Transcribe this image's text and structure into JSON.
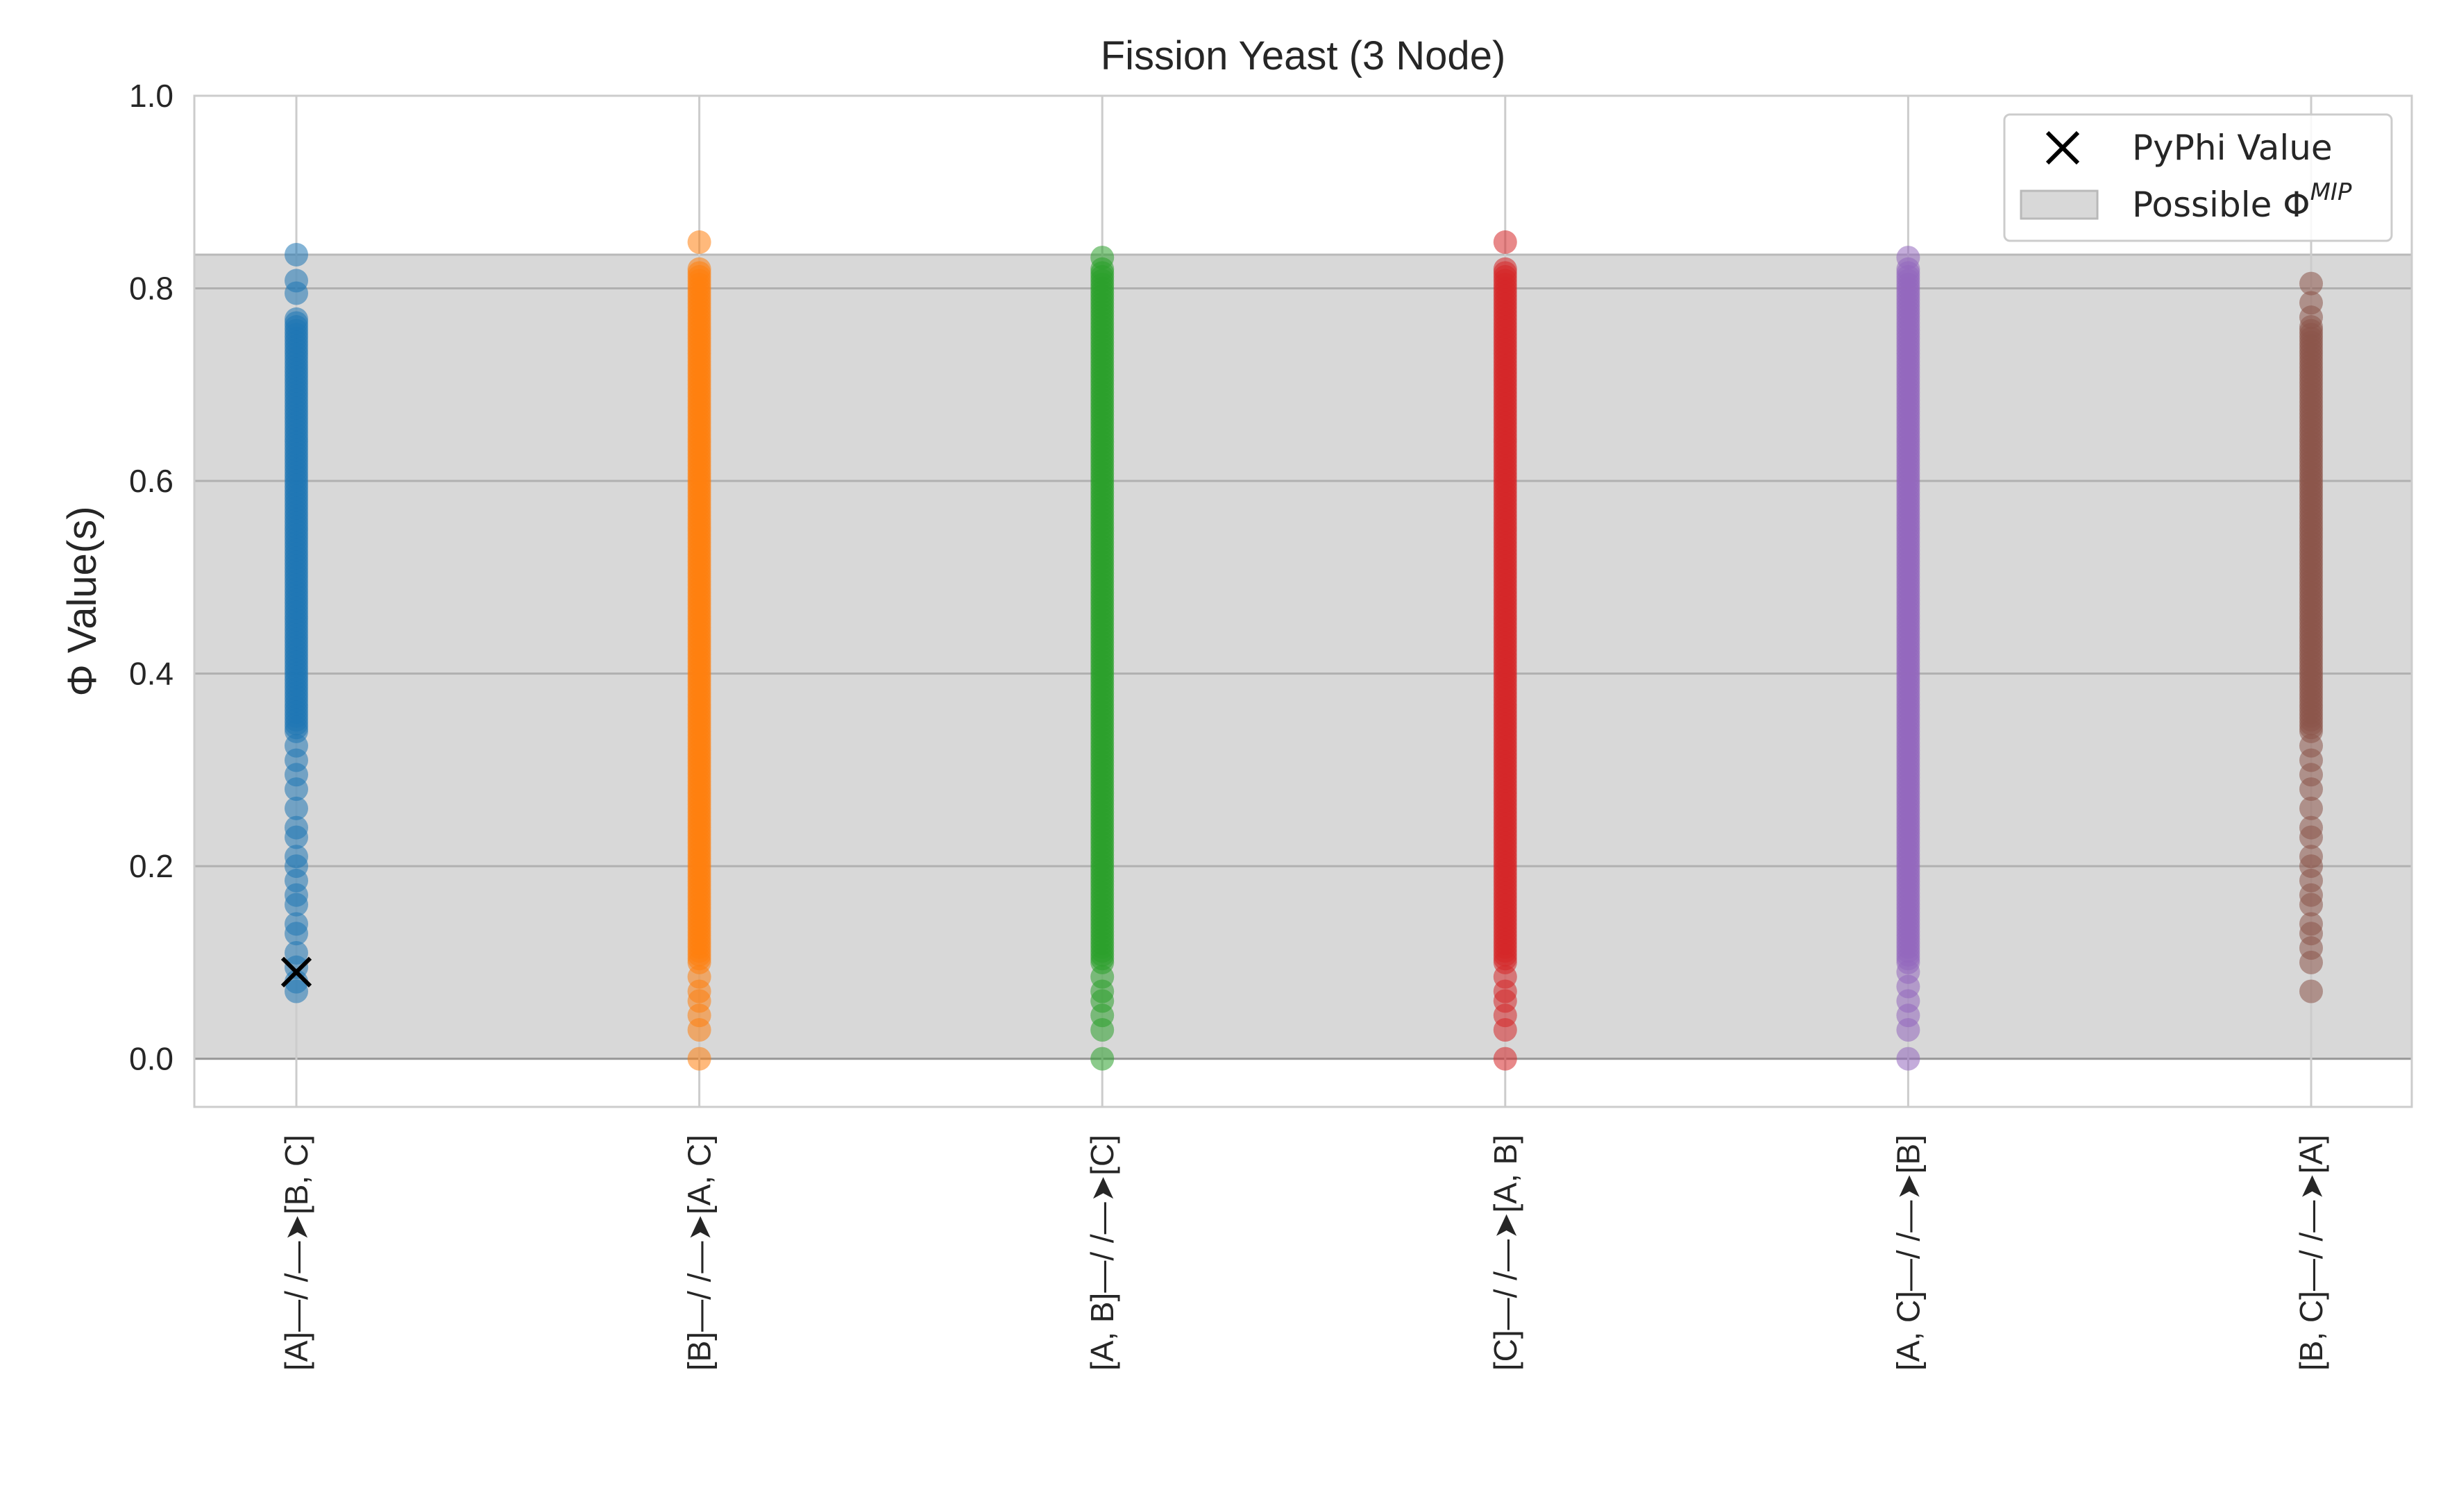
{
  "chart_data": {
    "type": "scatter",
    "title": "Fission Yeast (3 Node)",
    "xlabel": "",
    "ylabel": "Φ Value(s)",
    "ylim": [
      -0.05,
      1.0
    ],
    "yticks": [
      0.0,
      0.2,
      0.4,
      0.6,
      0.8,
      1.0
    ],
    "ytick_labels": [
      "0.0",
      "0.2",
      "0.4",
      "0.6",
      "0.8",
      "1.0"
    ],
    "grid": true,
    "legend_position": "top-right",
    "shaded_band": {
      "label": "Possible Φ",
      "label_superscript": "MIP",
      "ymin": 0.0,
      "ymax": 0.835,
      "color": "#d8d8d8"
    },
    "categories": [
      "[A]—/ /—➤[B, C]",
      "[B]—/ /—➤[A, C]",
      "[A, B]—/ /—➤[C]",
      "[C]—/ /—➤[A, B]",
      "[A, C]—/ /—➤[B]",
      "[B, C]—/ /—➤[A]"
    ],
    "series": [
      {
        "color": "#1f77b4",
        "min": 0.07,
        "max": 0.835,
        "sparse_below": 0.34,
        "dense_top": 0.77,
        "extra_points": [
          0.07,
          0.08,
          0.095,
          0.11,
          0.13,
          0.14,
          0.16,
          0.17,
          0.185,
          0.2,
          0.21,
          0.23,
          0.24,
          0.26,
          0.28,
          0.295,
          0.31,
          0.325,
          0.795,
          0.808,
          0.835
        ]
      },
      {
        "color": "#ff7f0e",
        "min": 0.0,
        "max": 0.848,
        "sparse_below": 0.1,
        "dense_top": 0.82,
        "extra_points": [
          0.0,
          0.03,
          0.045,
          0.06,
          0.07,
          0.085,
          0.848
        ]
      },
      {
        "color": "#2ca02c",
        "min": 0.0,
        "max": 0.832,
        "sparse_below": 0.1,
        "dense_top": 0.82,
        "extra_points": [
          0.0,
          0.03,
          0.045,
          0.06,
          0.07,
          0.085,
          0.832
        ]
      },
      {
        "color": "#d62728",
        "min": 0.0,
        "max": 0.848,
        "sparse_below": 0.1,
        "dense_top": 0.82,
        "extra_points": [
          0.0,
          0.03,
          0.045,
          0.06,
          0.07,
          0.085,
          0.848
        ]
      },
      {
        "color": "#9467bd",
        "min": 0.0,
        "max": 0.832,
        "sparse_below": 0.1,
        "dense_top": 0.82,
        "extra_points": [
          0.0,
          0.03,
          0.045,
          0.06,
          0.075,
          0.09,
          0.832
        ]
      },
      {
        "color": "#8c564b",
        "min": 0.07,
        "max": 0.805,
        "sparse_below": 0.34,
        "dense_top": 0.76,
        "extra_points": [
          0.07,
          0.1,
          0.115,
          0.13,
          0.14,
          0.16,
          0.17,
          0.185,
          0.2,
          0.21,
          0.23,
          0.24,
          0.26,
          0.28,
          0.295,
          0.31,
          0.325,
          0.77,
          0.785,
          0.805
        ]
      }
    ],
    "pyphi_value": {
      "label": "PyPhi Value",
      "category_index": 0,
      "y": 0.09,
      "color": "#000000"
    }
  }
}
